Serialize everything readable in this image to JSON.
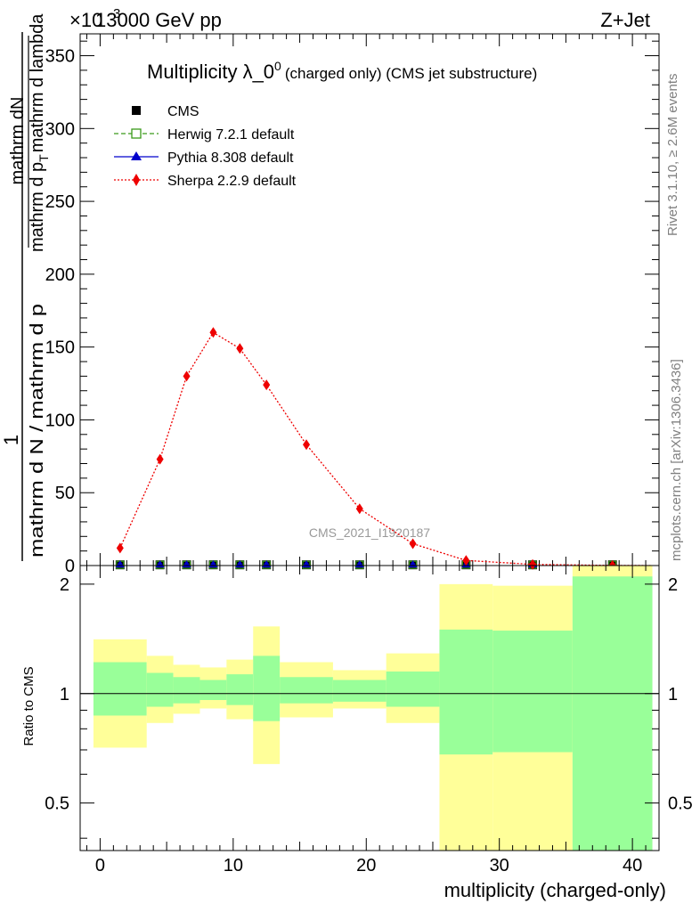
{
  "header": {
    "energy_label": "13000 GeV pp",
    "process_label": "Z+Jet",
    "exponent_label": "×10",
    "exponent_power": "-3"
  },
  "side_labels": {
    "rivet": "Rivet 3.1.10, ≥ 2.6M events",
    "mcplots": "mcplots.cern.ch [arXiv:1306.3436]"
  },
  "chart_data": [
    {
      "type": "line",
      "title_main": "Multiplicity λ_0",
      "title_sup": "0",
      "title_small": "(charged only) (CMS jet substructure)",
      "ylabel_numerator": "mathrm dN",
      "ylabel_numerator_line2": "mathrm d p",
      "ylabel_numerator_sub": "T",
      "ylabel_numerator_line3": "mathrm d lambda",
      "ylabel_one": "1",
      "ylabel_den_a": "mathrm d N / mathrm d p",
      "ylabel_den_sub": "T",
      "ylabel_den_b": "mathrm d lambda",
      "analysis_label": "CMS_2021_I1920187",
      "xlim": [
        -1.5,
        42
      ],
      "ylim": [
        0,
        365
      ],
      "yticks": [
        0,
        50,
        100,
        150,
        200,
        250,
        300,
        350
      ],
      "legend_position": "top-left",
      "legend": [
        {
          "name": "CMS",
          "color": "#000000",
          "marker": "square"
        },
        {
          "name": "Herwig 7.2.1 default",
          "color": "#3a9a1a",
          "marker": "open-square",
          "dash": "dashed"
        },
        {
          "name": "Pythia 8.308 default",
          "color": "#0000cc",
          "marker": "triangle",
          "dash": "solid"
        },
        {
          "name": "Sherpa 2.2.9 default",
          "color": "#ee0000",
          "marker": "diamond",
          "dash": "dotted"
        }
      ],
      "series": [
        {
          "name": "CMS",
          "x": [
            1.5,
            4.5,
            6.5,
            8.5,
            10.5,
            12.5,
            15.5,
            19.5,
            23.5,
            27.5,
            32.5,
            38.5
          ],
          "values": [
            0.5,
            0.5,
            0.5,
            0.5,
            0.5,
            0.5,
            0.5,
            0.5,
            0.5,
            0.5,
            0.5,
            0.5
          ]
        },
        {
          "name": "Sherpa 2.2.9 default",
          "x": [
            1.5,
            4.5,
            6.5,
            8.5,
            10.5,
            12.5,
            15.5,
            19.5,
            23.5,
            27.5,
            32.5,
            38.5
          ],
          "values": [
            12,
            73,
            130,
            160,
            149,
            124,
            83,
            39,
            15,
            3.5,
            0.8,
            0.1
          ]
        }
      ]
    },
    {
      "type": "area",
      "ylabel": "Ratio to CMS",
      "xlabel": "multiplicity (charged-only)",
      "xlim": [
        -1.5,
        42
      ],
      "ylim": [
        0.37,
        2.25
      ],
      "xticks": [
        0,
        10,
        20,
        30,
        40
      ],
      "yticks": [
        0.5,
        1,
        2
      ],
      "bins": [
        {
          "lo": -0.5,
          "hi": 3.5,
          "stat_lo": 0.87,
          "stat_hi": 1.22,
          "tot_lo": 0.71,
          "tot_hi": 1.41
        },
        {
          "lo": 3.5,
          "hi": 5.5,
          "stat_lo": 0.92,
          "stat_hi": 1.14,
          "tot_lo": 0.83,
          "tot_hi": 1.27
        },
        {
          "lo": 5.5,
          "hi": 7.5,
          "stat_lo": 0.94,
          "stat_hi": 1.11,
          "tot_lo": 0.88,
          "tot_hi": 1.2
        },
        {
          "lo": 7.5,
          "hi": 9.5,
          "stat_lo": 0.96,
          "stat_hi": 1.09,
          "tot_lo": 0.91,
          "tot_hi": 1.18
        },
        {
          "lo": 9.5,
          "hi": 11.5,
          "stat_lo": 0.93,
          "stat_hi": 1.13,
          "tot_lo": 0.85,
          "tot_hi": 1.24
        },
        {
          "lo": 11.5,
          "hi": 13.5,
          "stat_lo": 0.84,
          "stat_hi": 1.27,
          "tot_lo": 0.64,
          "tot_hi": 1.53
        },
        {
          "lo": 13.5,
          "hi": 17.5,
          "stat_lo": 0.94,
          "stat_hi": 1.11,
          "tot_lo": 0.86,
          "tot_hi": 1.22
        },
        {
          "lo": 17.5,
          "hi": 21.5,
          "stat_lo": 0.95,
          "stat_hi": 1.09,
          "tot_lo": 0.91,
          "tot_hi": 1.16
        },
        {
          "lo": 21.5,
          "hi": 25.5,
          "stat_lo": 0.92,
          "stat_hi": 1.15,
          "tot_lo": 0.83,
          "tot_hi": 1.29
        },
        {
          "lo": 25.5,
          "hi": 29.5,
          "stat_lo": 0.68,
          "stat_hi": 1.5,
          "tot_lo": 0.3,
          "tot_hi": 2.0
        },
        {
          "lo": 29.5,
          "hi": 35.5,
          "stat_lo": 0.69,
          "stat_hi": 1.49,
          "tot_lo": 0.3,
          "tot_hi": 1.98
        },
        {
          "lo": 35.5,
          "hi": 41.5,
          "stat_lo": 0.3,
          "stat_hi": 2.1,
          "tot_lo": 0.3,
          "tot_hi": 3.0
        }
      ],
      "reference_line": 1
    }
  ],
  "colors": {
    "stat_band": "#99ff99",
    "total_band": "#ffff99",
    "sherpa": "#ee0000",
    "herwig": "#3a9a1a",
    "pythia": "#0000cc"
  }
}
